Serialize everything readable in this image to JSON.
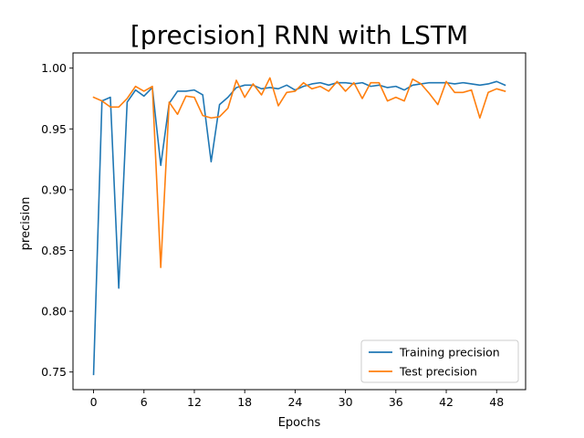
{
  "chart_data": {
    "type": "line",
    "title": "[precision] RNN with LSTM",
    "xlabel": "Epochs",
    "ylabel": "precision",
    "xlim": [
      -2.45,
      51.45
    ],
    "ylim": [
      0.7355,
      1.0125
    ],
    "xticks": [
      0,
      6,
      12,
      18,
      24,
      30,
      36,
      42,
      48
    ],
    "yticks": [
      0.75,
      0.8,
      0.85,
      0.9,
      0.95,
      1.0
    ],
    "ytick_labels": [
      "0.75",
      "0.80",
      "0.85",
      "0.90",
      "0.95",
      "1.00"
    ],
    "grid": false,
    "legend_position": "bottom-right",
    "x": [
      0,
      1,
      2,
      3,
      4,
      5,
      6,
      7,
      8,
      9,
      10,
      11,
      12,
      13,
      14,
      15,
      16,
      17,
      18,
      19,
      20,
      21,
      22,
      23,
      24,
      25,
      26,
      27,
      28,
      29,
      30,
      31,
      32,
      33,
      34,
      35,
      36,
      37,
      38,
      39,
      40,
      41,
      42,
      43,
      44,
      45,
      46,
      47,
      48,
      49
    ],
    "series": [
      {
        "name": "Training precision",
        "color": "#1f77b4",
        "values": [
          0.748,
          0.973,
          0.976,
          0.819,
          0.972,
          0.982,
          0.977,
          0.984,
          0.92,
          0.971,
          0.981,
          0.981,
          0.982,
          0.978,
          0.923,
          0.97,
          0.976,
          0.984,
          0.986,
          0.986,
          0.983,
          0.984,
          0.983,
          0.986,
          0.982,
          0.985,
          0.987,
          0.988,
          0.986,
          0.988,
          0.988,
          0.987,
          0.988,
          0.985,
          0.986,
          0.984,
          0.985,
          0.982,
          0.986,
          0.987,
          0.988,
          0.988,
          0.988,
          0.987,
          0.988,
          0.987,
          0.986,
          0.987,
          0.989,
          0.986
        ]
      },
      {
        "name": "Test precision",
        "color": "#ff7f0e",
        "values": [
          0.976,
          0.973,
          0.968,
          0.968,
          0.975,
          0.985,
          0.981,
          0.985,
          0.836,
          0.972,
          0.962,
          0.977,
          0.976,
          0.961,
          0.959,
          0.96,
          0.967,
          0.99,
          0.976,
          0.987,
          0.978,
          0.992,
          0.969,
          0.98,
          0.981,
          0.988,
          0.983,
          0.985,
          0.981,
          0.989,
          0.981,
          0.988,
          0.975,
          0.988,
          0.988,
          0.973,
          0.976,
          0.973,
          0.991,
          0.987,
          0.979,
          0.97,
          0.989,
          0.98,
          0.98,
          0.982,
          0.959,
          0.98,
          0.983,
          0.981
        ]
      }
    ]
  }
}
